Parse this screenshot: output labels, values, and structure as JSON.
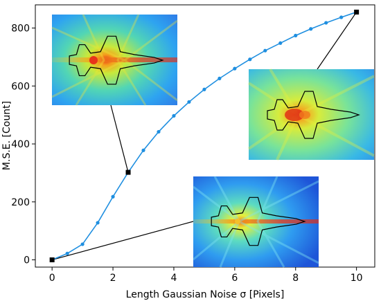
{
  "chart_data": {
    "type": "line",
    "title": "",
    "xlabel": "Length Gaussian Noise σ [Pixels]",
    "ylabel": "M.S.E. [Count]",
    "xlim": [
      -0.55,
      10.6
    ],
    "ylim": [
      -25,
      880
    ],
    "xticks": [
      0,
      2,
      4,
      6,
      8,
      10
    ],
    "yticks": [
      0,
      200,
      400,
      600,
      800
    ],
    "grid": false,
    "legend": "none",
    "series": [
      {
        "color": "#1f8fe0",
        "marker": "circle",
        "x": [
          0,
          0.5,
          1.0,
          1.5,
          2.0,
          2.5,
          3.0,
          3.5,
          4.0,
          4.5,
          5.0,
          5.5,
          6.0,
          6.5,
          7.0,
          7.5,
          8.0,
          8.5,
          9.0,
          9.5,
          10.0
        ],
        "y": [
          0,
          22,
          54,
          128,
          218,
          302,
          378,
          442,
          497,
          545,
          588,
          626,
          660,
          692,
          722,
          748,
          774,
          797,
          818,
          837,
          855
        ]
      }
    ],
    "highlighted_points": [
      {
        "x": 0,
        "y": 0,
        "marker": "square",
        "color": "#000000"
      },
      {
        "x": 2.5,
        "y": 302,
        "marker": "square",
        "color": "#000000"
      },
      {
        "x": 10,
        "y": 855,
        "marker": "square",
        "color": "#000000"
      }
    ],
    "insets": [
      {
        "name": "heatmap-inset-sigma-2.5",
        "attached_to_x": 2.5,
        "attached_to_y": 302,
        "content": "heatmap with aircraft outline"
      },
      {
        "name": "heatmap-inset-sigma-10",
        "attached_to_x": 10,
        "attached_to_y": 855,
        "content": "heatmap with aircraft outline"
      },
      {
        "name": "heatmap-inset-sigma-0",
        "attached_to_x": 0,
        "attached_to_y": 0,
        "content": "heatmap with aircraft outline"
      }
    ]
  }
}
